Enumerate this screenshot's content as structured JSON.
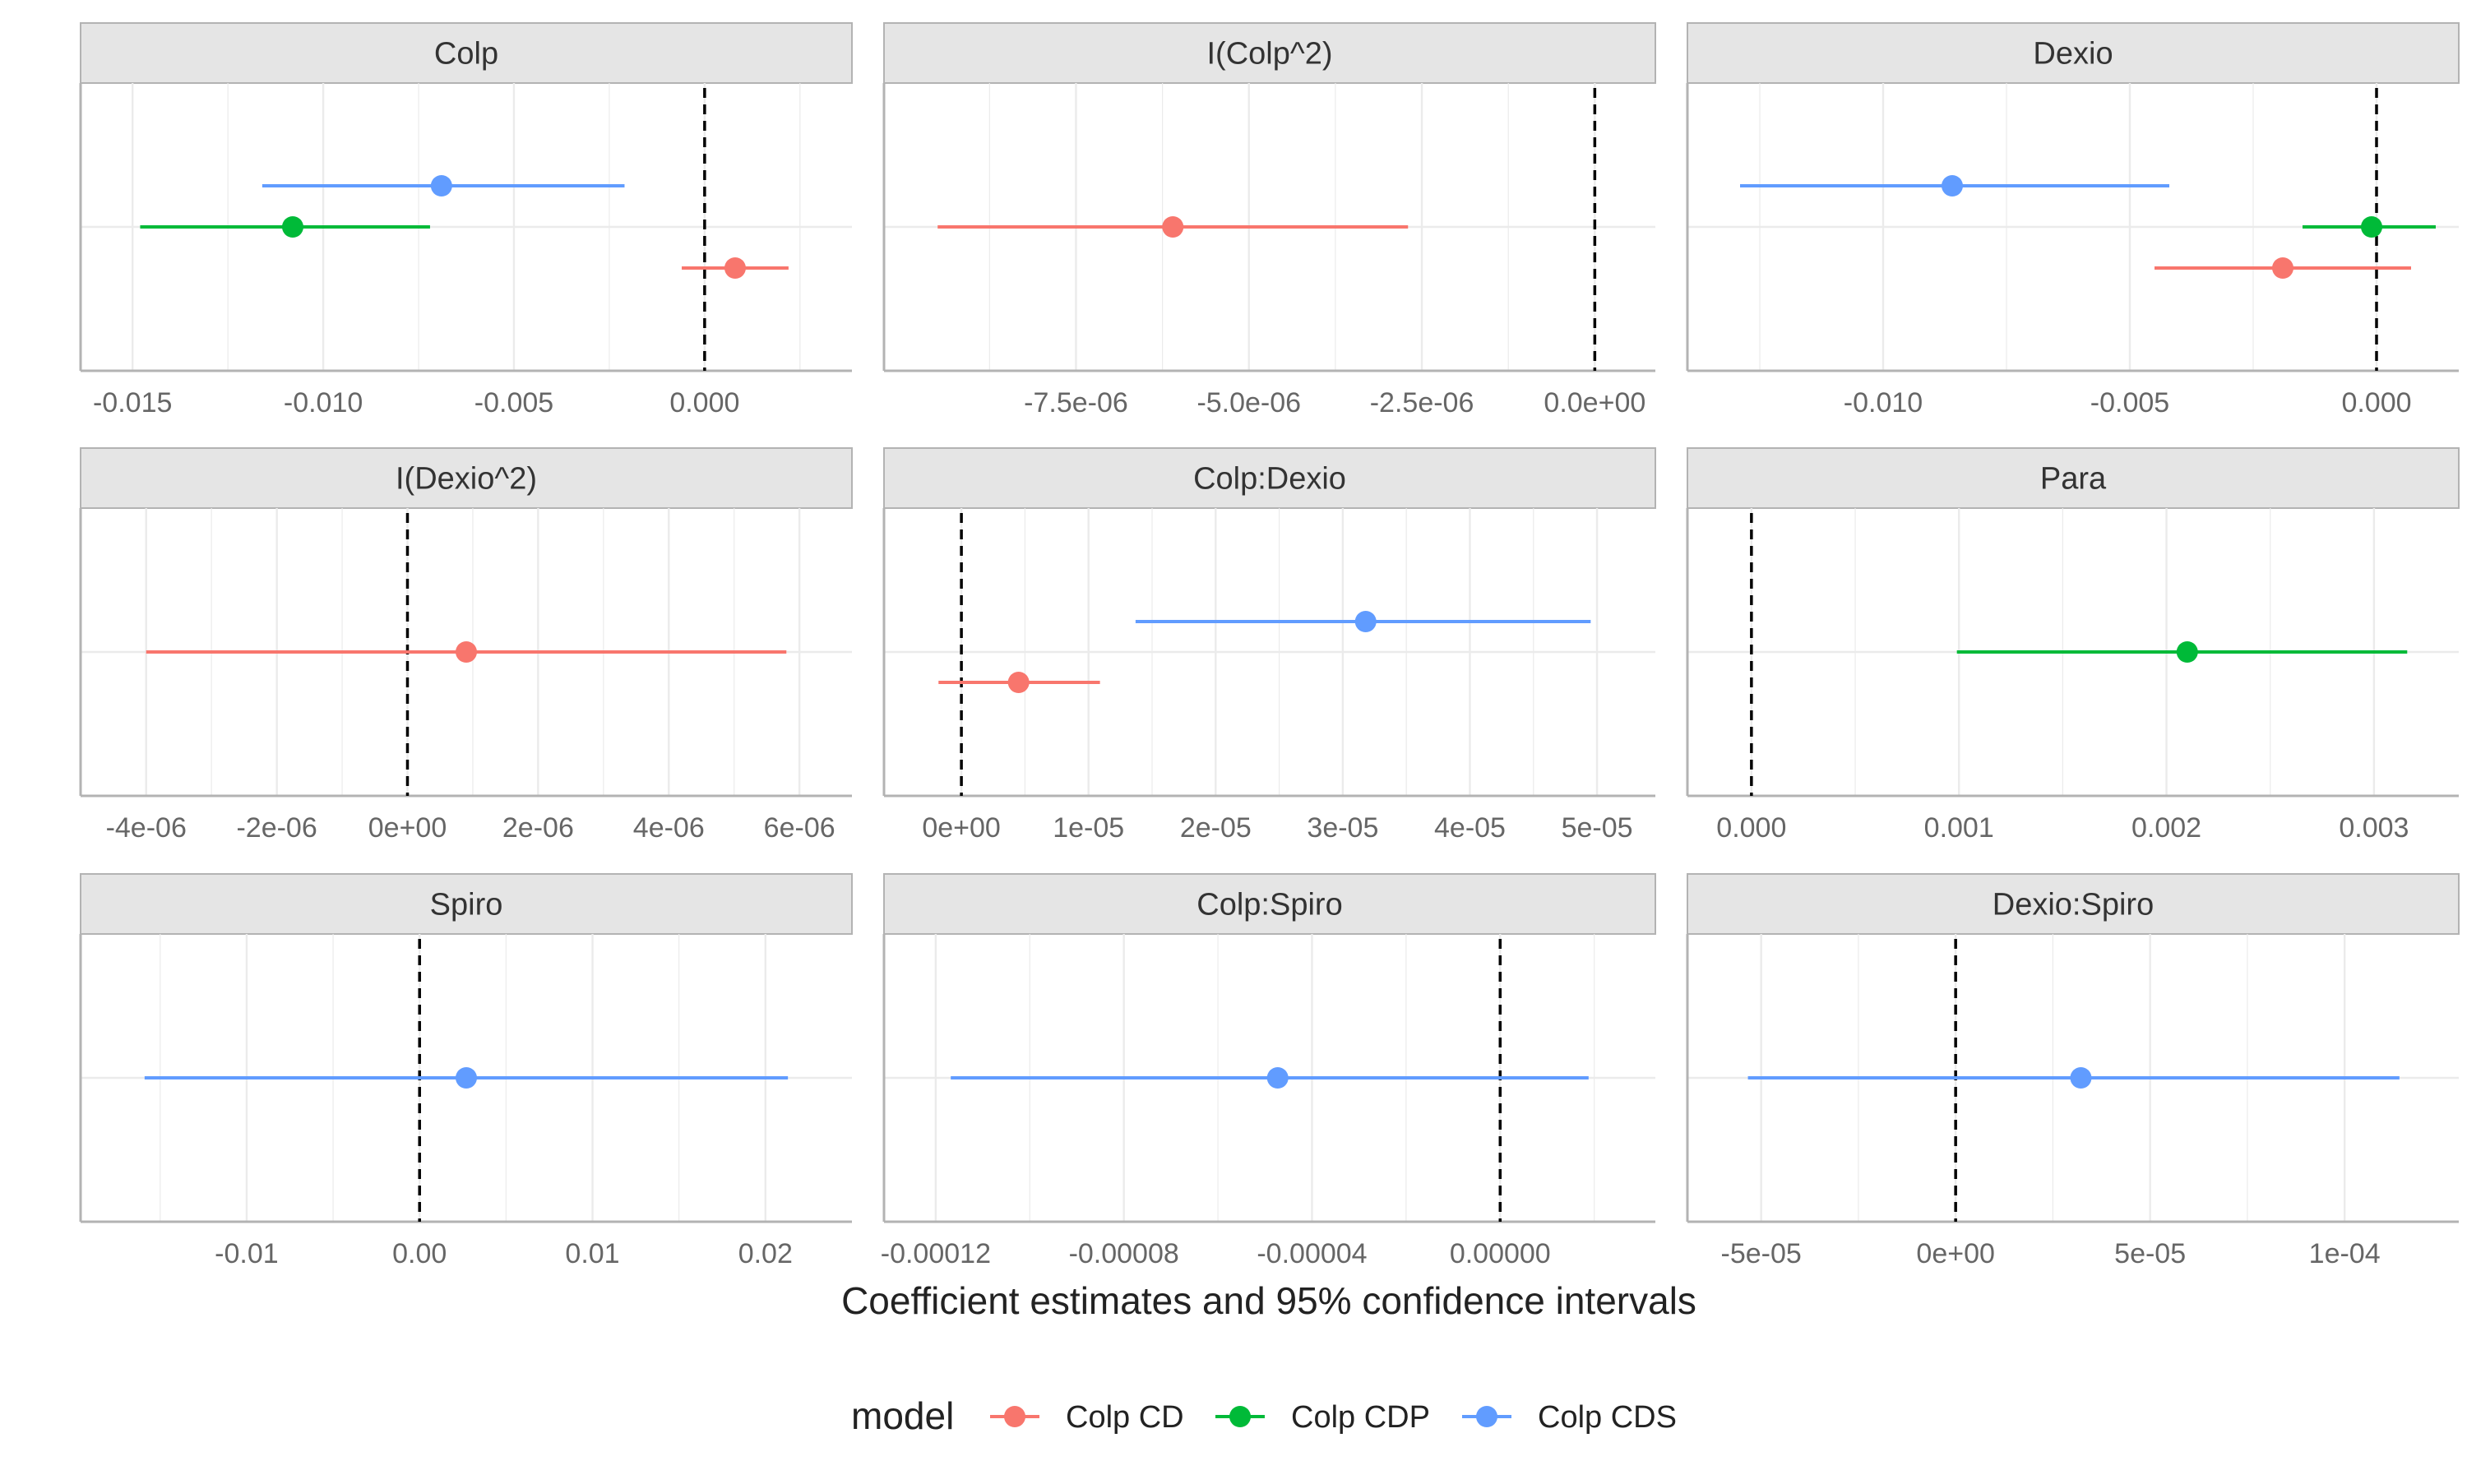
{
  "chart_data": {
    "type": "scatter",
    "xlabel": "Coefficient estimates and 95% confidence intervals",
    "legend": {
      "title": "model",
      "position": "bottom",
      "entries": [
        {
          "name": "Colp CD",
          "color": "#F8766D"
        },
        {
          "name": "Colp CDP",
          "color": "#00BA38"
        },
        {
          "name": "Colp CDS",
          "color": "#619CFF"
        }
      ]
    },
    "grid": true,
    "facets": [
      {
        "title": "Colp",
        "xlim": [
          -0.0155,
          0.003
        ],
        "ticks": [
          -0.015,
          -0.01,
          -0.005,
          0.0
        ],
        "tick_labels": [
          "-0.015",
          "-0.010",
          "-0.005",
          "0.000"
        ],
        "estimates": [
          {
            "model": "Colp CDS",
            "estimate": -0.0069,
            "low": -0.0116,
            "high": -0.0021
          },
          {
            "model": "Colp CDP",
            "estimate": -0.0108,
            "low": -0.0148,
            "high": -0.0072
          },
          {
            "model": "Colp CD",
            "estimate": 0.0008,
            "low": -0.0006,
            "high": 0.0022
          }
        ]
      },
      {
        "title": "I(Colp^2)",
        "xlim": [
          -9.8e-06,
          4e-07
        ],
        "ticks": [
          -7.5e-06,
          -5e-06,
          -2.5e-06,
          0.0
        ],
        "tick_labels": [
          "-7.5e-06",
          "-5.0e-06",
          "-2.5e-06",
          "0.0e+00"
        ],
        "estimates": [
          {
            "model": "Colp CD",
            "estimate": -6.1e-06,
            "low": -9.5e-06,
            "high": -2.7e-06
          }
        ]
      },
      {
        "title": "Dexio",
        "xlim": [
          -0.0133,
          0.001
        ],
        "ticks": [
          -0.01,
          -0.005,
          0.0
        ],
        "tick_labels": [
          "-0.010",
          "-0.005",
          "0.000"
        ],
        "estimates": [
          {
            "model": "Colp CDS",
            "estimate": -0.0086,
            "low": -0.0129,
            "high": -0.0042
          },
          {
            "model": "Colp CDP",
            "estimate": -0.0001,
            "low": -0.0015,
            "high": 0.0012
          },
          {
            "model": "Colp CD",
            "estimate": -0.0019,
            "low": -0.0045,
            "high": 0.0007
          }
        ]
      },
      {
        "title": "I(Dexio^2)",
        "xlim": [
          -4.5e-06,
          6.3e-06
        ],
        "ticks": [
          -4e-06,
          -2e-06,
          0.0,
          2e-06,
          4e-06,
          6e-06
        ],
        "tick_labels": [
          "-4e-06",
          "-2e-06",
          "0e+00",
          "2e-06",
          "4e-06",
          "6e-06"
        ],
        "estimates": [
          {
            "model": "Colp CD",
            "estimate": 9e-07,
            "low": -4e-06,
            "high": 5.8e-06
          }
        ]
      },
      {
        "title": "Colp:Dexio",
        "xlim": [
          -3.5e-06,
          5.2e-05
        ],
        "ticks": [
          0.0,
          1e-05,
          2e-05,
          3e-05,
          4e-05,
          5e-05
        ],
        "tick_labels": [
          "0e+00",
          "1e-05",
          "2e-05",
          "3e-05",
          "4e-05",
          "5e-05"
        ],
        "estimates": [
          {
            "model": "Colp CDS",
            "estimate": 3.18e-05,
            "low": 1.37e-05,
            "high": 4.95e-05
          },
          {
            "model": "Colp CD",
            "estimate": 4.5e-06,
            "low": -1.8e-06,
            "high": 1.09e-05
          }
        ]
      },
      {
        "title": "Para",
        "xlim": [
          -0.00015,
          0.00325
        ],
        "ticks": [
          0.0,
          0.001,
          0.002,
          0.003
        ],
        "tick_labels": [
          "0.000",
          "0.001",
          "0.002",
          "0.003"
        ],
        "estimates": [
          {
            "model": "Colp CDP",
            "estimate": 0.0021,
            "low": 0.00099,
            "high": 0.00316
          }
        ]
      },
      {
        "title": "Spiro",
        "xlim": [
          -0.0177,
          0.0231
        ],
        "ticks": [
          -0.01,
          0.0,
          0.01,
          0.02
        ],
        "tick_labels": [
          "-0.01",
          "0.00",
          "0.01",
          "0.02"
        ],
        "estimates": [
          {
            "model": "Colp CDS",
            "estimate": 0.0027,
            "low": -0.0159,
            "high": 0.0213
          }
        ]
      },
      {
        "title": "Colp:Spiro",
        "xlim": [
          -0.000124,
          2.6e-05
        ],
        "ticks": [
          -0.00012,
          -8e-05,
          -4e-05,
          0.0
        ],
        "tick_labels": [
          "-0.00012",
          "-0.00008",
          "-0.00004",
          "0.00000"
        ],
        "estimates": [
          {
            "model": "Colp CDS",
            "estimate": -4.73e-05,
            "low": -0.0001168,
            "high": 1.88e-05
          }
        ]
      },
      {
        "title": "Dexio:Spiro",
        "xlim": [
          -6.05e-05,
          0.0001209
        ],
        "ticks": [
          -5e-05,
          0.0,
          5e-05,
          0.0001
        ],
        "tick_labels": [
          "-5e-05",
          "0e+00",
          "5e-05",
          "1e-04"
        ],
        "estimates": [
          {
            "model": "Colp CDS",
            "estimate": 3.22e-05,
            "low": -5.34e-05,
            "high": 0.0001141
          }
        ]
      }
    ]
  }
}
